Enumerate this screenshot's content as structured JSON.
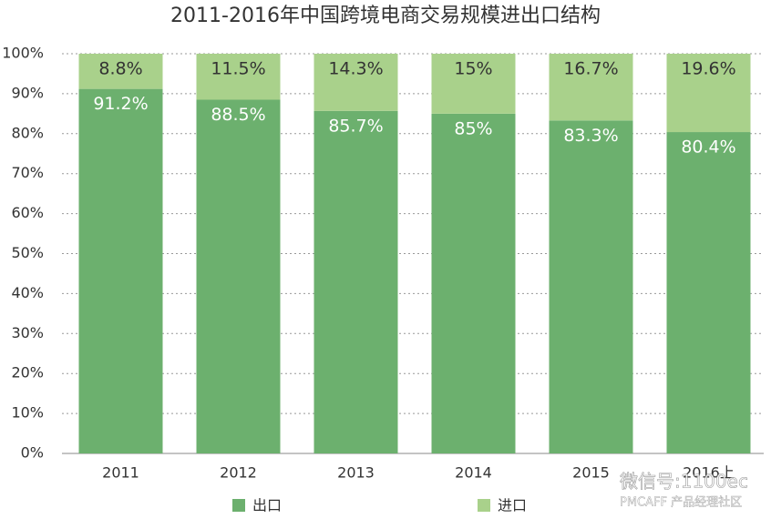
{
  "chart_data": {
    "type": "stacked-bar",
    "title": "2011-2016年中国跨境电商交易规模进出口结构",
    "categories": [
      "2011",
      "2012",
      "2013",
      "2014",
      "2015",
      "2016上"
    ],
    "series": [
      {
        "name": "出口",
        "color": "#6cb06e",
        "values": [
          91.2,
          88.5,
          85.7,
          85,
          83.3,
          80.4
        ],
        "value_labels": [
          "91.2%",
          "88.5%",
          "85.7%",
          "85%",
          "83.3%",
          "80.4%"
        ]
      },
      {
        "name": "进口",
        "color": "#a9d18b",
        "values": [
          8.8,
          11.5,
          14.3,
          15,
          16.7,
          19.6
        ],
        "value_labels": [
          "8.8%",
          "11.5%",
          "14.3%",
          "15%",
          "16.7%",
          "19.6%"
        ]
      }
    ],
    "ylim": [
      0,
      100
    ],
    "yticks": [
      {
        "value": 0,
        "label": "0%"
      },
      {
        "value": 10,
        "label": "10%"
      },
      {
        "value": 20,
        "label": "20%"
      },
      {
        "value": 30,
        "label": "30%"
      },
      {
        "value": 40,
        "label": "40%"
      },
      {
        "value": 50,
        "label": "50%"
      },
      {
        "value": 60,
        "label": "60%"
      },
      {
        "value": 70,
        "label": "70%"
      },
      {
        "value": 80,
        "label": "80%"
      },
      {
        "value": 90,
        "label": "90%"
      },
      {
        "value": 100,
        "label": "100%"
      }
    ],
    "grid": true,
    "legend": "bottom",
    "watermark": [
      "微信号:1100ec",
      "PMCAFF 产品经理社区"
    ]
  }
}
